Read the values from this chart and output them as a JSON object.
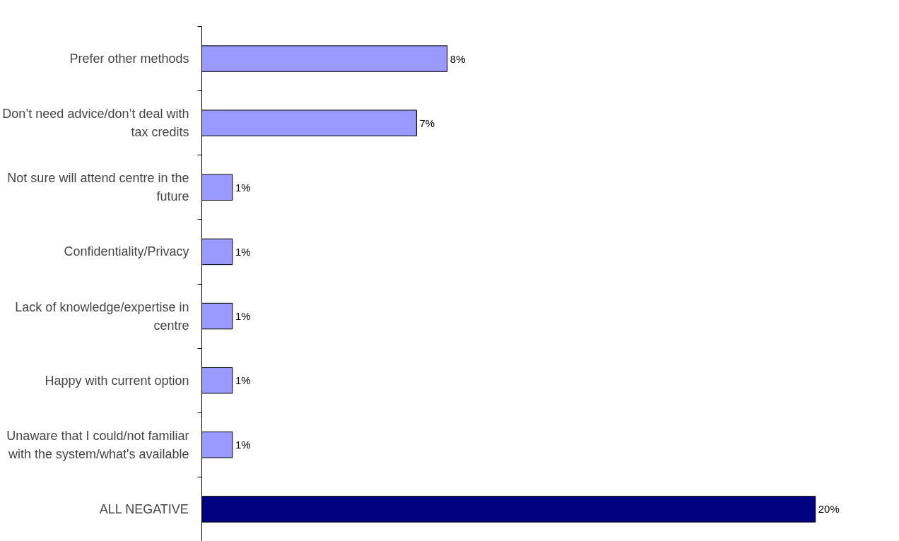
{
  "chart_data": {
    "type": "bar",
    "orientation": "horizontal",
    "categories": [
      "Prefer other methods",
      "Don’t need advice/don’t deal with tax credits",
      "Not sure will attend centre in the future",
      "Confidentiality/Privacy",
      "Lack of knowledge/expertise in centre",
      "Happy with current option",
      "Unaware that I could/not familiar with the system/what's available",
      "ALL NEGATIVE"
    ],
    "values": [
      8,
      7,
      1,
      1,
      1,
      1,
      1,
      20
    ],
    "colors": [
      "#9999ff",
      "#9999ff",
      "#9999ff",
      "#9999ff",
      "#9999ff",
      "#9999ff",
      "#9999ff",
      "#000080"
    ],
    "value_labels": [
      "8%",
      "7%",
      "1%",
      "1%",
      "1%",
      "1%",
      "1%",
      "20%"
    ],
    "grid": false
  }
}
